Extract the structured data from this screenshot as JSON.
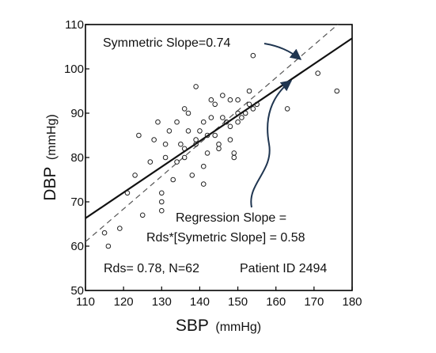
{
  "chart_data": {
    "type": "scatter",
    "title": "",
    "xlabel": "SBP",
    "xunit": "(mmHg)",
    "ylabel": "DBP",
    "yunit": "(mmHg)",
    "xlim": [
      110,
      180
    ],
    "ylim": [
      50,
      110
    ],
    "xticks": [
      110,
      120,
      130,
      140,
      150,
      160,
      170,
      180
    ],
    "yticks": [
      50,
      60,
      70,
      80,
      90,
      100,
      110
    ],
    "grid": false,
    "legend": "none",
    "marker_color": "#222222",
    "points": {
      "x": [
        115,
        116,
        119,
        121,
        123,
        124,
        125,
        127,
        128,
        129,
        130,
        130,
        130,
        131,
        131,
        132,
        133,
        134,
        134,
        135,
        136,
        136,
        136,
        137,
        137,
        138,
        139,
        139,
        139,
        140,
        141,
        141,
        141,
        142,
        142,
        143,
        143,
        144,
        144,
        145,
        145,
        146,
        146,
        147,
        148,
        148,
        148,
        149,
        149,
        150,
        150,
        150,
        151,
        152,
        153,
        153,
        154,
        154,
        155,
        163,
        171,
        176
      ],
      "y": [
        63,
        60,
        64,
        72,
        76,
        85,
        67,
        79,
        84,
        88,
        68,
        70,
        72,
        80,
        83,
        86,
        75,
        79,
        88,
        83,
        82,
        91,
        80,
        86,
        90,
        76,
        84,
        83,
        96,
        86,
        88,
        74,
        78,
        81,
        85,
        93,
        89,
        85,
        92,
        83,
        82,
        89,
        94,
        88,
        93,
        84,
        87,
        80,
        81,
        88,
        90,
        93,
        89,
        90,
        92,
        95,
        91,
        103,
        92,
        91,
        99,
        95
      ]
    },
    "lines": [
      {
        "style": "solid",
        "slope": 0.58,
        "x": [
          110,
          180
        ],
        "y": [
          66.3,
          106.9
        ]
      },
      {
        "style": "dashed",
        "slope": 0.74,
        "x": [
          110,
          180
        ],
        "y": [
          61.0,
          112.8
        ]
      }
    ],
    "annotations": {
      "symmetric": "Symmetric Slope=0.74",
      "regression_line1": "Regression Slope =",
      "regression_line2": "Rds*[Symetric Slope] = 0.58",
      "stats": "Rds= 0.78,  N=62",
      "patient": "Patient ID 2494"
    }
  }
}
